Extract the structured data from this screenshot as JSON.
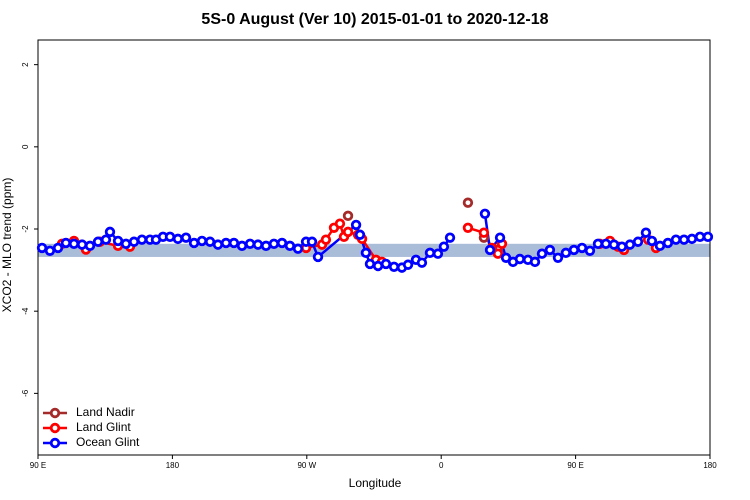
{
  "chart_data": {
    "type": "scatter-line",
    "title": "5S-0 August (Ver 10)   2015-01-01 to 2020-12-18",
    "x_label": "Longitude",
    "y_label": "XCO2 - MLO trend (ppm)",
    "xlim": [
      90,
      540
    ],
    "ylim": [
      -7.5,
      2.6
    ],
    "xticks": [
      {
        "value": 90,
        "label": "90 E"
      },
      180,
      {
        "value": 270,
        "label": "90 W"
      },
      {
        "value": 360,
        "label": "0"
      },
      {
        "value": 450,
        "label": "90 E"
      },
      {
        "value": 540,
        "label": "180"
      }
    ],
    "yticks": [
      2,
      0,
      -2,
      -4,
      -6
    ],
    "band": [
      -2.68,
      -2.36
    ],
    "band_color": "#a9bcd8",
    "legend": "bottom-left",
    "series": [
      {
        "name": "Land Nadir",
        "color": "#a52a2a",
        "line": false,
        "x": [
          297.6,
          377.9,
          388.6,
          398
        ],
        "values": [
          -1.68,
          -1.36,
          -2.21,
          -2.51
        ]
      },
      {
        "name": "Land Glint",
        "color": "#ff0000",
        "line": true,
        "x": [
          106.1,
          114.1,
          122.1,
          null,
          131.5,
          143.6,
          151.6,
          null,
          269.5,
          280.2,
          282.8,
          288.2,
          292.2,
          294.9,
          297.6,
          304.3,
          307,
          316.3,
          320.3,
          null,
          377.9,
          388.6,
          394,
          398,
          400.7,
          null,
          466.3,
          473,
          478.4,
          482.4,
          null,
          498.5,
          503.8
        ],
        "values": [
          -2.36,
          -2.29,
          -2.5,
          null,
          -2.31,
          -2.41,
          -2.43,
          null,
          -2.46,
          -2.38,
          -2.26,
          -1.97,
          -1.87,
          -2.19,
          -2.07,
          -2.14,
          -2.24,
          -2.75,
          -2.8,
          null,
          -1.97,
          -2.09,
          -2.46,
          -2.6,
          -2.36,
          null,
          -2.36,
          -2.29,
          -2.43,
          -2.51,
          null,
          -2.26,
          -2.46
        ]
      },
      {
        "name": "Ocean Glint",
        "color": "#0000ff",
        "line": true,
        "x": [
          92.7,
          98,
          103.4,
          108.7,
          114.1,
          119.5,
          124.8,
          130.2,
          135.5,
          138.2,
          143.6,
          148.9,
          154.3,
          159.6,
          165,
          169,
          173.7,
          178.4,
          183.7,
          189.1,
          194.5,
          199.8,
          205.2,
          210.5,
          215.9,
          221.2,
          226.6,
          232,
          237.3,
          242.7,
          248,
          253.4,
          258.7,
          264.1,
          269.5,
          273.5,
          277.5,
          303,
          305.6,
          309.6,
          312.3,
          317.7,
          323,
          328.4,
          333.7,
          337.8,
          343.1,
          347.1,
          352.5,
          357.8,
          361.8,
          365.9,
          null,
          389.3,
          392.7,
          399.4,
          403.4,
          408.1,
          412.7,
          418.1,
          422.8,
          427.5,
          432.8,
          438.2,
          443.5,
          448.9,
          454.3,
          459.6,
          465,
          470.3,
          475.7,
          481,
          486.4,
          491.8,
          497.1,
          501.1,
          506.5,
          511.8,
          517.2,
          522.6,
          527.9,
          533.3,
          538.6
        ],
        "values": [
          -2.46,
          -2.53,
          -2.46,
          -2.34,
          -2.36,
          -2.38,
          -2.41,
          -2.31,
          -2.26,
          -2.07,
          -2.29,
          -2.36,
          -2.31,
          -2.26,
          -2.26,
          -2.26,
          -2.19,
          -2.19,
          -2.24,
          -2.21,
          -2.34,
          -2.29,
          -2.31,
          -2.38,
          -2.34,
          -2.34,
          -2.41,
          -2.36,
          -2.38,
          -2.41,
          -2.36,
          -2.34,
          -2.41,
          -2.48,
          -2.31,
          -2.31,
          -2.68,
          -1.9,
          -2.14,
          -2.58,
          -2.85,
          -2.9,
          -2.85,
          -2.92,
          -2.94,
          -2.87,
          -2.75,
          -2.82,
          -2.58,
          -2.6,
          -2.43,
          -2.21,
          null,
          -1.63,
          -2.51,
          -2.21,
          -2.7,
          -2.8,
          -2.73,
          -2.75,
          -2.8,
          -2.6,
          -2.51,
          -2.7,
          -2.58,
          -2.51,
          -2.46,
          -2.53,
          -2.36,
          -2.36,
          -2.38,
          -2.43,
          -2.38,
          -2.31,
          -2.09,
          -2.29,
          -2.41,
          -2.34,
          -2.26,
          -2.26,
          -2.24,
          -2.19,
          -2.19
        ]
      }
    ]
  }
}
